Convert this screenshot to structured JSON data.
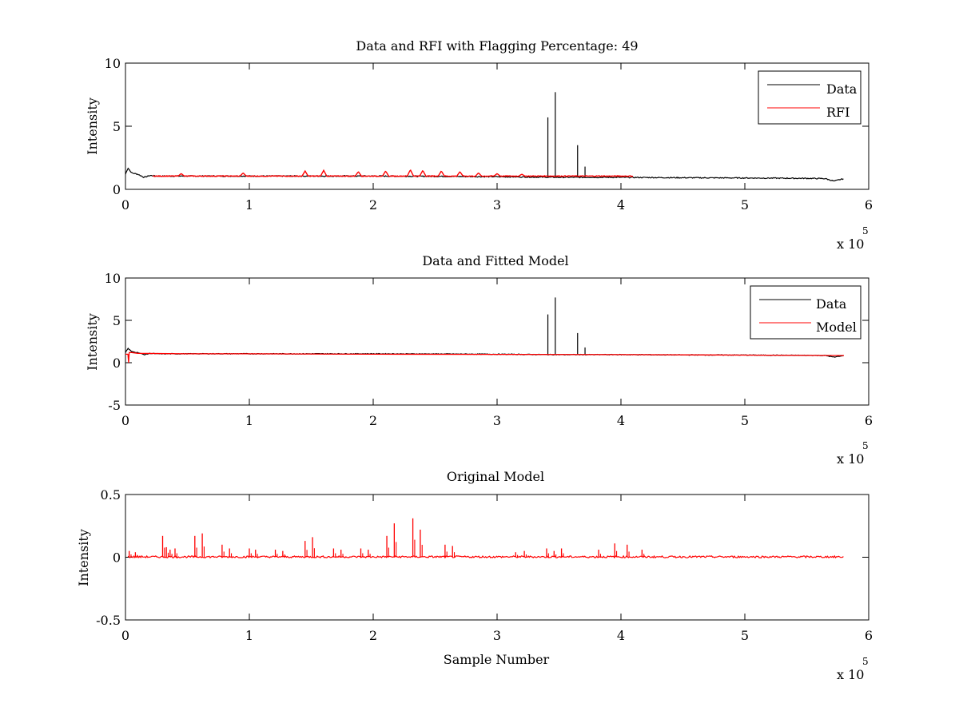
{
  "chart_data": [
    {
      "type": "line",
      "title": "Data and RFI with Flagging Percentage: 49",
      "xlabel": "",
      "ylabel": "Intensity",
      "xlim": [
        0,
        600000
      ],
      "ylim": [
        0,
        10
      ],
      "x_ticks": [
        0,
        1,
        2,
        3,
        4,
        5,
        6
      ],
      "x_tick_labels": [
        "0",
        "1",
        "2",
        "3",
        "4",
        "5",
        "6"
      ],
      "y_ticks": [
        0,
        5,
        10
      ],
      "y_tick_labels": [
        "0",
        "5",
        "10"
      ],
      "x_multiplier_label": "x 10",
      "x_multiplier_exponent": "5",
      "legend": {
        "placement": "top-right",
        "entries": [
          "Data",
          "RFI"
        ]
      },
      "series": [
        {
          "name": "Data",
          "color": "#000000",
          "baseline_x": [
            0,
            2000,
            5000,
            10000,
            15000,
            20000,
            25000,
            50000,
            100000,
            150000,
            200000,
            250000,
            300000,
            350000,
            400000,
            450000,
            500000,
            550000,
            565000,
            572000,
            580000
          ],
          "baseline_y": [
            1.2,
            1.7,
            1.3,
            1.2,
            0.95,
            1.1,
            1.05,
            1.05,
            1.05,
            1.05,
            1.05,
            1.03,
            1.0,
            0.95,
            0.95,
            0.92,
            0.9,
            0.87,
            0.85,
            0.65,
            0.85
          ],
          "spikes_x": [
            341000,
            347000,
            365000,
            371000
          ],
          "spikes_y": [
            5.7,
            7.7,
            3.5,
            1.8
          ]
        },
        {
          "name": "RFI",
          "color": "#ff0000",
          "x_range": [
            22000,
            410000
          ],
          "baseline_y": 1.05,
          "bumps_x": [
            45000,
            95000,
            145000,
            160000,
            188000,
            210000,
            230000,
            240000,
            255000,
            270000,
            285000,
            300000,
            320000
          ],
          "bumps_y": [
            1.25,
            1.3,
            1.45,
            1.5,
            1.4,
            1.45,
            1.55,
            1.5,
            1.45,
            1.4,
            1.3,
            1.25,
            1.2
          ]
        }
      ]
    },
    {
      "type": "line",
      "title": "Data and Fitted Model",
      "xlabel": "",
      "ylabel": "Intensity",
      "xlim": [
        0,
        600000
      ],
      "ylim": [
        -5,
        10
      ],
      "x_ticks": [
        0,
        1,
        2,
        3,
        4,
        5,
        6
      ],
      "x_tick_labels": [
        "0",
        "1",
        "2",
        "3",
        "4",
        "5",
        "6"
      ],
      "y_ticks": [
        -5,
        0,
        5,
        10
      ],
      "y_tick_labels": [
        "-5",
        "0",
        "5",
        "10"
      ],
      "x_multiplier_label": "x 10",
      "x_multiplier_exponent": "5",
      "legend": {
        "placement": "top-right",
        "entries": [
          "Data",
          "Model"
        ]
      },
      "series": [
        {
          "name": "Data",
          "color": "#000000",
          "baseline_x": [
            0,
            2000,
            5000,
            10000,
            15000,
            20000,
            25000,
            50000,
            100000,
            150000,
            200000,
            250000,
            300000,
            350000,
            400000,
            450000,
            500000,
            550000,
            565000,
            572000,
            580000
          ],
          "baseline_y": [
            1.2,
            1.7,
            1.3,
            1.2,
            0.95,
            1.1,
            1.05,
            1.05,
            1.05,
            1.05,
            1.05,
            1.03,
            1.0,
            0.95,
            0.95,
            0.92,
            0.9,
            0.87,
            0.85,
            0.65,
            0.85
          ],
          "spikes_x": [
            341000,
            347000,
            365000,
            371000
          ],
          "spikes_y": [
            5.7,
            7.7,
            3.5,
            1.8
          ]
        },
        {
          "name": "Model",
          "color": "#ff0000",
          "x": [
            0,
            2000,
            2500,
            3000,
            5000,
            10000,
            50000,
            100000,
            200000,
            300000,
            400000,
            500000,
            580000
          ],
          "y": [
            1.0,
            1.0,
            0.0,
            1.2,
            1.2,
            1.1,
            1.05,
            1.05,
            1.0,
            0.98,
            0.95,
            0.9,
            0.85
          ]
        }
      ]
    },
    {
      "type": "line",
      "title": "Original Model",
      "xlabel": "Sample Number",
      "ylabel": "Intensity",
      "xlim": [
        0,
        600000
      ],
      "ylim": [
        -0.5,
        0.5
      ],
      "x_ticks": [
        0,
        1,
        2,
        3,
        4,
        5,
        6
      ],
      "x_tick_labels": [
        "0",
        "1",
        "2",
        "3",
        "4",
        "5",
        "6"
      ],
      "y_ticks": [
        -0.5,
        0,
        0.5
      ],
      "y_tick_labels": [
        "-0.5",
        "0",
        "0.5"
      ],
      "x_multiplier_label": "x 10",
      "x_multiplier_exponent": "5",
      "series": [
        {
          "name": "",
          "color": "#ff0000",
          "x_range": [
            2000,
            580000
          ],
          "baseline_y": 0.0,
          "spikes_x": [
            3000,
            8000,
            30000,
            33000,
            36000,
            40000,
            56000,
            62000,
            78000,
            84000,
            100000,
            105000,
            121000,
            127000,
            145000,
            151000,
            168000,
            174000,
            190000,
            196000,
            211000,
            217000,
            232000,
            238000,
            258000,
            264000,
            315000,
            322000,
            340000,
            346000,
            352000,
            382000,
            395000,
            405000,
            417000
          ],
          "spikes_y": [
            0.05,
            0.04,
            0.17,
            0.08,
            0.06,
            0.07,
            0.17,
            0.19,
            0.1,
            0.07,
            0.07,
            0.06,
            0.06,
            0.05,
            0.13,
            0.16,
            0.07,
            0.06,
            0.07,
            0.06,
            0.17,
            0.27,
            0.31,
            0.22,
            0.1,
            0.09,
            0.04,
            0.05,
            0.07,
            0.05,
            0.07,
            0.06,
            0.11,
            0.1,
            0.06
          ]
        }
      ]
    }
  ]
}
